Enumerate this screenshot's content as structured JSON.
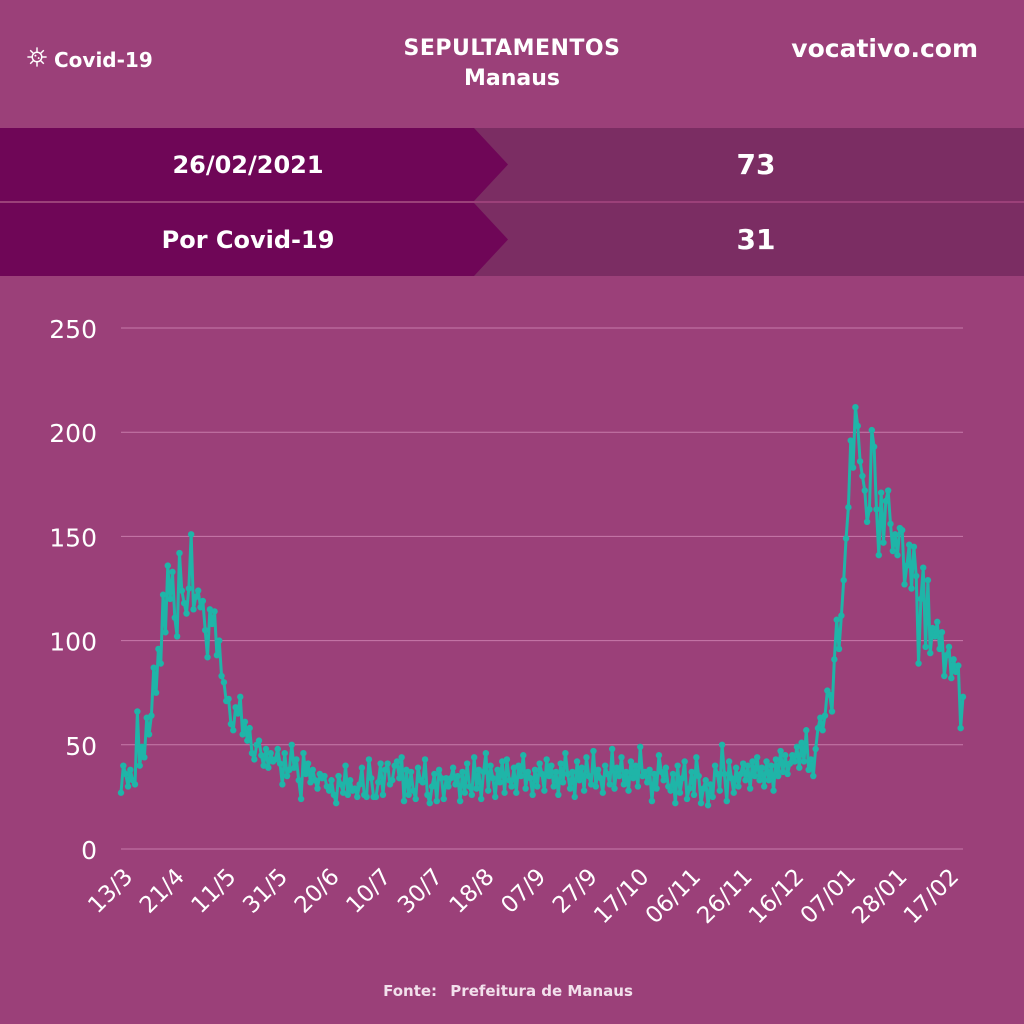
{
  "header": {
    "brand_label": "Covid-19",
    "brand_icon": "virus-icon",
    "title_line1": "SEPULTAMENTOS",
    "title_line2": "Manaus",
    "site": "vocativo.com"
  },
  "stats": [
    {
      "label": "26/02/2021",
      "value": "73"
    },
    {
      "label": "Por Covid-19",
      "value": "31"
    }
  ],
  "source": {
    "prefix": "Fonte:",
    "name": "Prefeitura de Manaus"
  },
  "colors": {
    "background": "#9b4079",
    "line": "#1fb5a8",
    "stat_label_bg": "#6f0657",
    "stat_value_bg": "#7b2d63",
    "gridline": "#c77aaa"
  },
  "chart_data": {
    "type": "line",
    "title": "",
    "xlabel": "",
    "ylabel": "",
    "ylim": [
      0,
      250
    ],
    "yticks": [
      0,
      50,
      100,
      150,
      200,
      250
    ],
    "grid": true,
    "x_tick_labels": [
      "13/3",
      "21/4",
      "11/5",
      "31/5",
      "20/6",
      "10/7",
      "30/7",
      "18/8",
      "07/9",
      "27/9",
      "17/10",
      "06/11",
      "26/11",
      "16/12",
      "07/01",
      "28/01",
      "17/02"
    ],
    "series": [
      {
        "values": [
          27,
          40,
          36,
          30,
          38,
          33,
          31,
          66,
          40,
          49,
          44,
          63,
          55,
          64,
          87,
          75,
          96,
          89,
          122,
          104,
          136,
          120,
          133,
          111,
          102,
          142,
          124,
          118,
          113,
          125,
          151,
          115,
          121,
          124,
          116,
          119,
          105,
          92,
          115,
          108,
          114,
          93,
          100,
          83,
          80,
          71,
          72,
          60,
          57,
          68,
          65,
          73,
          55,
          61,
          52,
          58,
          46,
          43,
          50,
          52,
          45,
          40,
          48,
          39,
          46,
          42,
          43,
          48,
          41,
          31,
          46,
          35,
          38,
          50,
          39,
          43,
          33,
          24,
          46,
          36,
          41,
          32,
          38,
          33,
          29,
          36,
          34,
          35,
          30,
          28,
          33,
          26,
          22,
          35,
          31,
          27,
          40,
          26,
          33,
          28,
          29,
          25,
          31,
          39,
          26,
          25,
          43,
          34,
          25,
          25,
          32,
          41,
          26,
          38,
          41,
          31,
          33,
          40,
          42,
          34,
          44,
          23,
          38,
          26,
          37,
          28,
          24,
          39,
          33,
          32,
          43,
          26,
          22,
          30,
          36,
          23,
          38,
          34,
          24,
          34,
          30,
          34,
          39,
          31,
          35,
          23,
          37,
          27,
          41,
          30,
          26,
          44,
          29,
          38,
          24,
          37,
          46,
          28,
          40,
          34,
          25,
          38,
          32,
          42,
          27,
          43,
          33,
          30,
          39,
          27,
          40,
          35,
          45,
          29,
          37,
          34,
          26,
          38,
          30,
          41,
          36,
          28,
          43,
          35,
          40,
          30,
          37,
          26,
          41,
          32,
          46,
          36,
          29,
          37,
          25,
          42,
          33,
          39,
          28,
          44,
          35,
          31,
          47,
          30,
          38,
          34,
          27,
          40,
          36,
          31,
          48,
          29,
          39,
          35,
          44,
          31,
          37,
          28,
          42,
          34,
          40,
          30,
          49,
          35,
          37,
          32,
          38,
          23,
          36,
          29,
          45,
          37,
          33,
          39,
          30,
          28,
          36,
          22,
          40,
          27,
          34,
          42,
          24,
          29,
          37,
          26,
          44,
          35,
          22,
          29,
          33,
          21,
          31,
          25,
          40,
          36,
          28,
          50,
          36,
          23,
          42,
          34,
          27,
          39,
          30,
          36,
          41,
          33,
          40,
          29,
          42,
          35,
          44,
          33,
          39,
          30,
          42,
          33,
          40,
          28,
          43,
          35,
          47,
          37,
          45,
          36,
          41,
          45,
          42,
          49,
          39,
          51,
          42,
          57,
          38,
          43,
          35,
          48,
          58,
          63,
          57,
          64,
          76,
          74,
          66,
          91,
          110,
          96,
          112,
          129,
          149,
          164,
          196,
          183,
          212,
          203,
          186,
          179,
          172,
          157,
          163,
          201,
          193,
          163,
          141,
          171,
          147,
          167,
          172,
          156,
          143,
          151,
          141,
          154,
          153,
          127,
          136,
          146,
          125,
          145,
          131,
          89,
          120,
          135,
          97,
          129,
          94,
          106,
          102,
          109,
          96,
          104,
          83,
          93,
          97,
          82,
          91,
          85,
          88,
          58,
          73
        ]
      }
    ]
  }
}
